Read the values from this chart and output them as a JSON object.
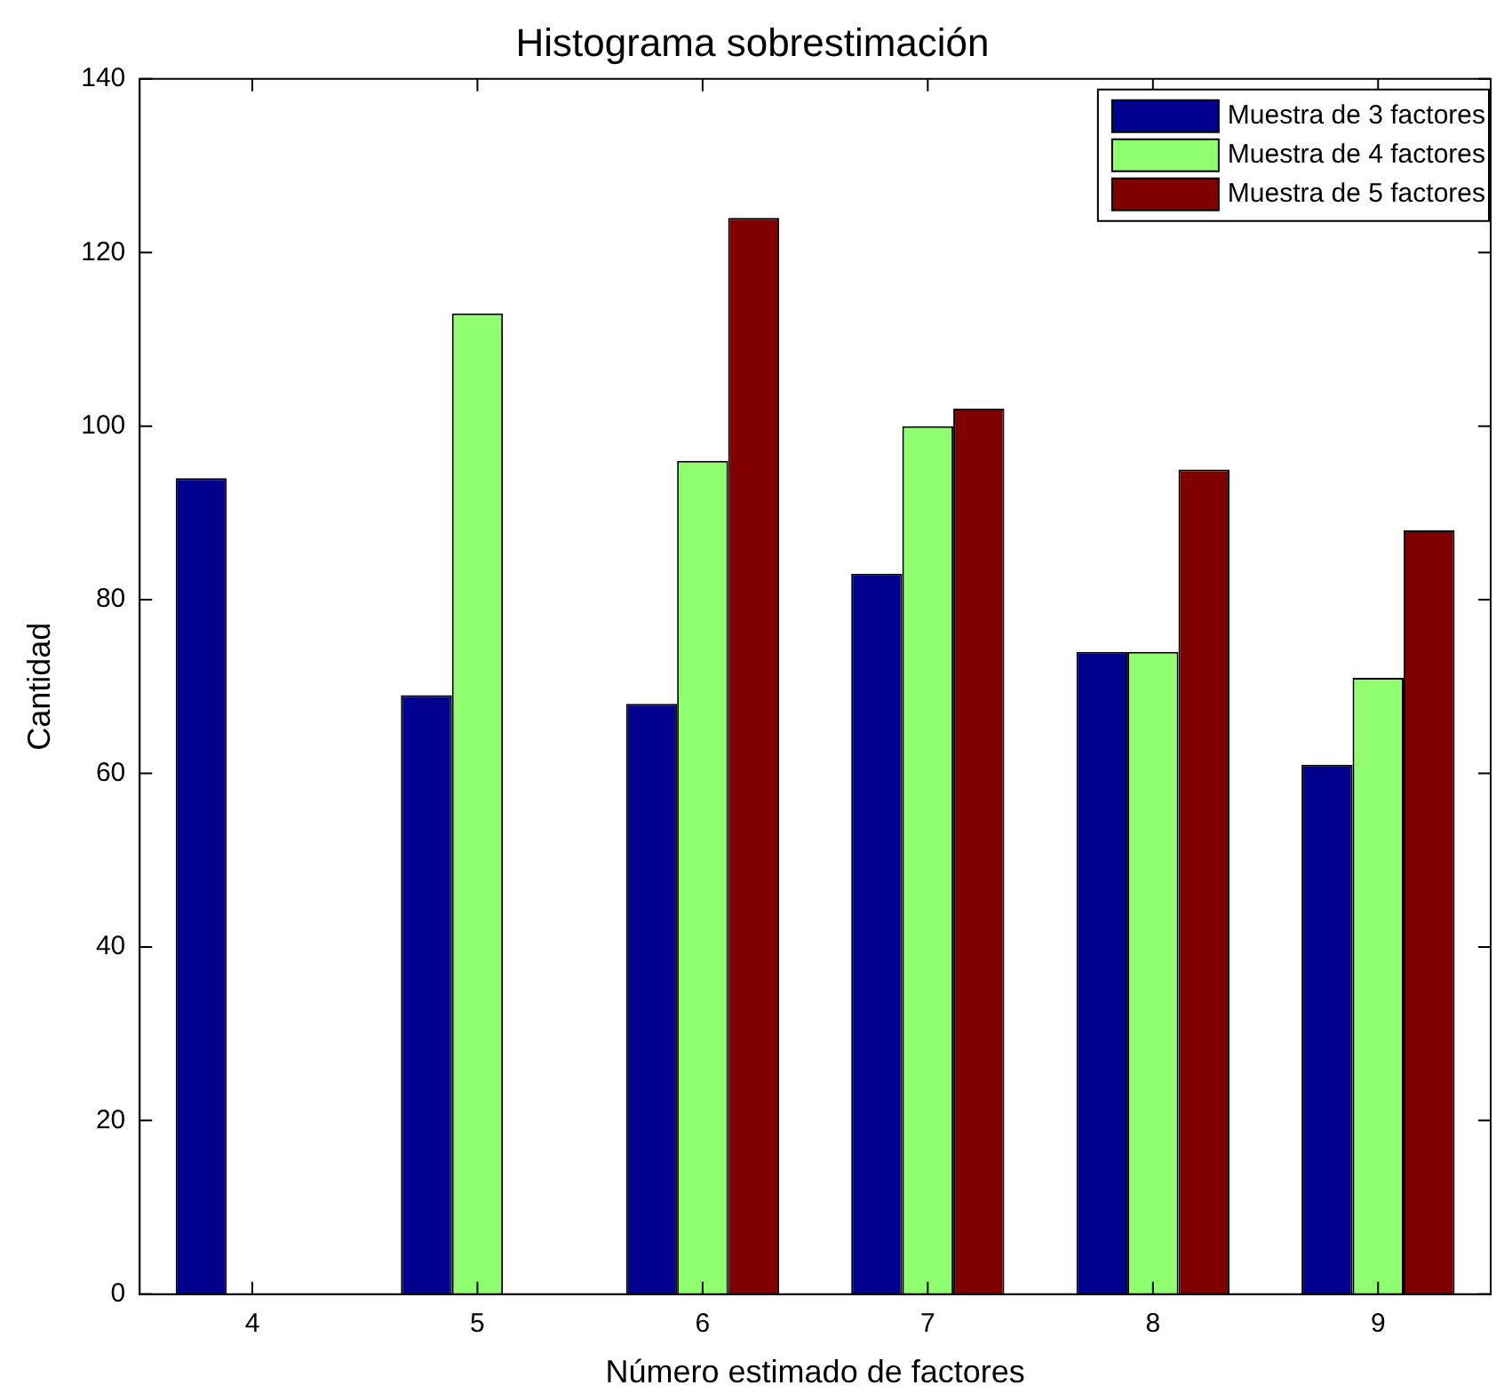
{
  "chart_data": {
    "type": "bar",
    "title": "Histograma sobrestimación",
    "xlabel": "Número estimado de factores",
    "ylabel": "Cantidad",
    "categories": [
      "4",
      "5",
      "6",
      "7",
      "8",
      "9"
    ],
    "series": [
      {
        "name": "Muestra de 3 factores",
        "color": "#00008f",
        "values": [
          94,
          69,
          68,
          83,
          74,
          61
        ]
      },
      {
        "name": "Muestra de 4 factores",
        "color": "#8fff6f",
        "values": [
          0,
          113,
          96,
          100,
          74,
          71
        ]
      },
      {
        "name": "Muestra de 5 factores",
        "color": "#800000",
        "values": [
          0,
          0,
          124,
          102,
          95,
          88
        ]
      }
    ],
    "ylim": [
      0,
      140
    ],
    "yticks": [
      0,
      20,
      40,
      60,
      80,
      100,
      120,
      140
    ],
    "grid": false,
    "legend": "top right"
  }
}
